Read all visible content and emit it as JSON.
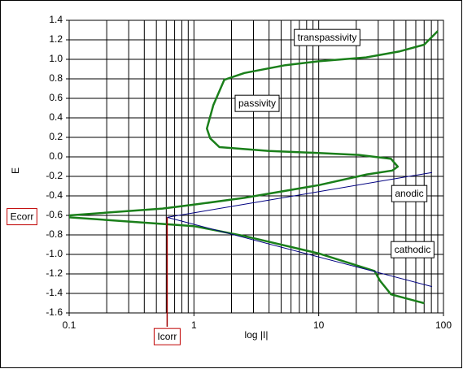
{
  "chart_data": {
    "type": "line",
    "xlog": true,
    "grid": true,
    "minor_grid": true,
    "xlabel": "log |I|",
    "ylabel": "E",
    "xlim": [
      0.1,
      100
    ],
    "xticks": [
      0.1,
      1,
      10,
      100
    ],
    "ylim": [
      -1.6,
      1.4
    ],
    "yticks": [
      {
        "value": 1.4,
        "label": "1.4"
      },
      {
        "value": 1.2,
        "label": "1.2"
      },
      {
        "value": 1,
        "label": "1.0"
      },
      {
        "value": 0.8,
        "label": "0.8"
      },
      {
        "value": 0.6,
        "label": "0.6"
      },
      {
        "value": 0.4,
        "label": "0.4"
      },
      {
        "value": 0.2,
        "label": "0.2"
      },
      {
        "value": 0,
        "label": "0.0"
      },
      {
        "value": -0.2,
        "label": "-0.2"
      },
      {
        "value": -0.4,
        "label": "-0.4"
      },
      {
        "value": -0.6,
        "label": "-0.6"
      },
      {
        "value": -0.8,
        "label": "-0.8"
      },
      {
        "value": -1,
        "label": "-1.0"
      },
      {
        "value": -1.2,
        "label": "-1.2"
      },
      {
        "value": -1.4,
        "label": "-1.4"
      },
      {
        "value": -1.6,
        "label": "-1.6"
      }
    ],
    "series": [
      {
        "color": "#1a7f1a",
        "width": 2.5,
        "x": [
          70,
          38,
          31,
          28,
          10,
          2.5,
          1,
          0.1,
          0.1,
          0.56,
          1,
          2.54,
          10,
          24.3,
          39,
          43,
          38,
          21,
          10,
          4,
          1.6,
          1.35,
          1.27,
          1.43,
          1.75,
          2.54,
          5.4,
          10,
          24,
          44,
          70,
          90
        ],
        "values": [
          -1.5,
          -1.41,
          -1.27,
          -1.17,
          -0.99,
          -0.81,
          -0.71,
          -0.62,
          -0.6,
          -0.53,
          -0.49,
          -0.42,
          -0.29,
          -0.18,
          -0.14,
          -0.1,
          -0.02,
          0.02,
          0.04,
          0.06,
          0.1,
          0.19,
          0.29,
          0.53,
          0.79,
          0.86,
          0.94,
          0.98,
          1.02,
          1.08,
          1.15,
          1.29
        ]
      },
      {
        "color": "#000080",
        "width": 1,
        "x": [
          0.61,
          81
        ],
        "values": [
          -0.62,
          -0.16
        ]
      },
      {
        "color": "#000080",
        "width": 1,
        "x": [
          0.61,
          81
        ],
        "values": [
          -0.62,
          -1.33
        ]
      }
    ],
    "ecorr": {
      "label": "Ecorr",
      "value": -0.62
    },
    "icorr": {
      "label": "Icorr",
      "value": 0.61
    },
    "annotations": [
      "transpassivity",
      "passivity",
      "anodic",
      "cathodic"
    ]
  }
}
